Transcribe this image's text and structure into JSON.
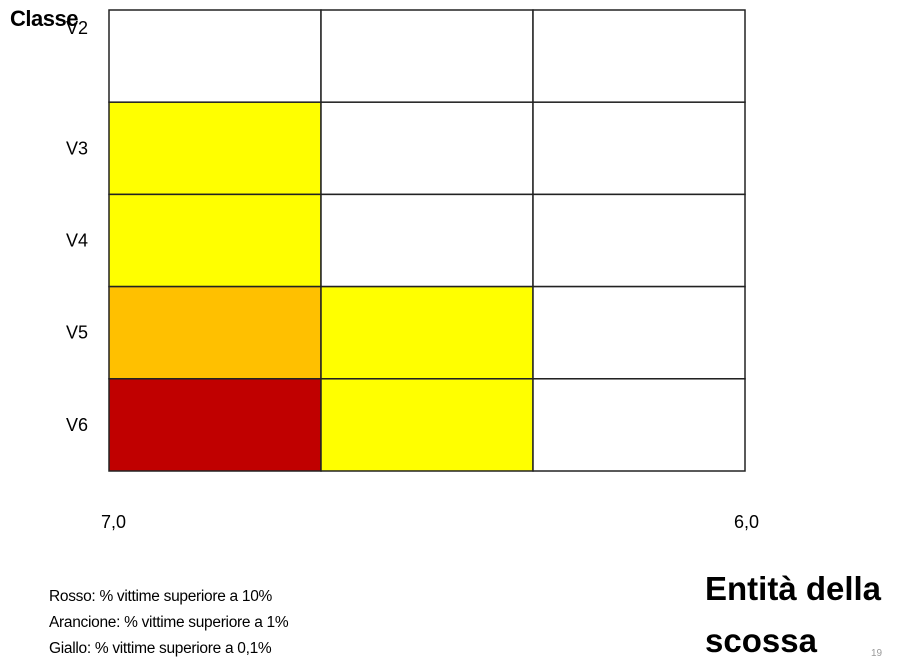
{
  "chart_data": {
    "type": "heatmap",
    "title": "",
    "ylabel": "Classe",
    "xlabel": "Entità della scossa",
    "rows": [
      "V2",
      "V3",
      "V4",
      "V5",
      "V6"
    ],
    "columns": 3,
    "x_ticks": {
      "left": "7,0",
      "right": "6,0"
    },
    "cells": [
      [
        "white",
        "white",
        "white"
      ],
      [
        "yellow",
        "white",
        "white"
      ],
      [
        "yellow",
        "white",
        "white"
      ],
      [
        "orange",
        "yellow",
        "white"
      ],
      [
        "red",
        "yellow",
        "white"
      ]
    ],
    "colors": {
      "white": "#ffffff",
      "yellow": "#ffff00",
      "orange": "#ffc000",
      "red": "#c00000",
      "grid": "#222222"
    },
    "legend": [
      "Rosso: % vittime superiore a 10%",
      "Arancione: % vittime superiore a 1%",
      "Giallo: % vittime superiore a 0,1%"
    ]
  },
  "page_number": "19"
}
